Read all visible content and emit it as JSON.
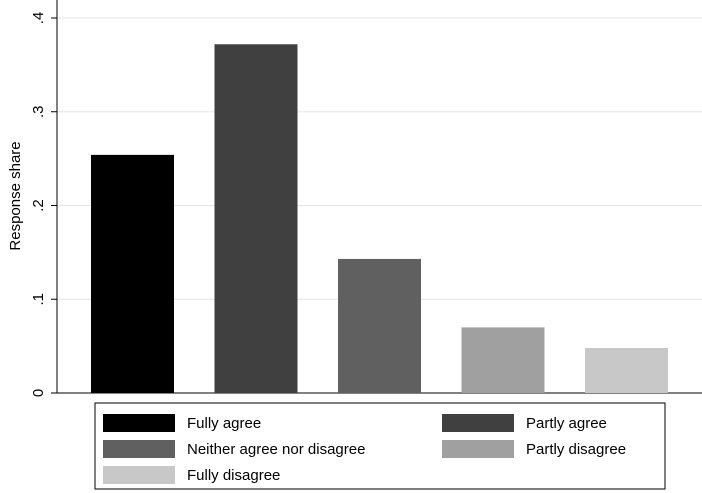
{
  "chart_data": {
    "type": "bar",
    "title": "",
    "xlabel": "",
    "ylabel": "Response share",
    "ylim": [
      0,
      0.4
    ],
    "yticks": [
      0,
      0.1,
      0.2,
      0.3,
      0.4
    ],
    "ytick_labels": [
      "0",
      ".1",
      ".2",
      ".3",
      ".4"
    ],
    "grid": true,
    "legend_position": "bottom",
    "series": [
      {
        "name": "Fully agree",
        "value": 0.254,
        "color": "#000000"
      },
      {
        "name": "Partly agree",
        "value": 0.372,
        "color": "#404040"
      },
      {
        "name": "Neither agree nor disagree",
        "value": 0.143,
        "color": "#606060"
      },
      {
        "name": "Partly disagree",
        "value": 0.07,
        "color": "#a0a0a0"
      },
      {
        "name": "Fully disagree",
        "value": 0.048,
        "color": "#c8c8c8"
      }
    ]
  }
}
